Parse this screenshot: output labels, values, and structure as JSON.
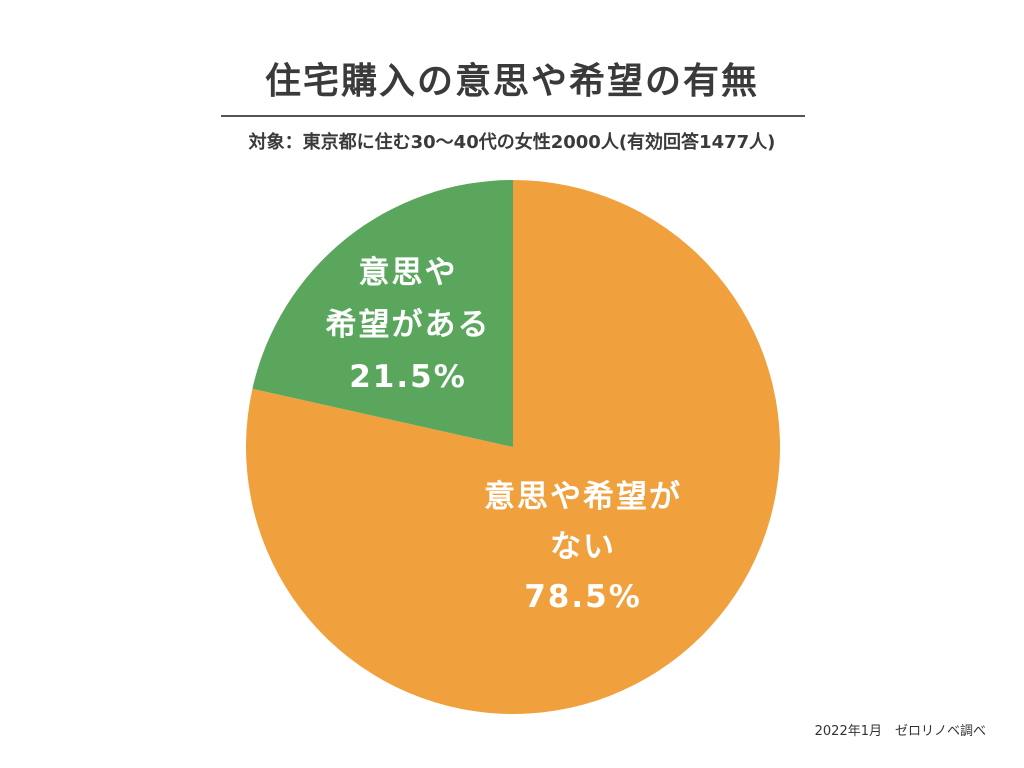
{
  "chart_data": {
    "type": "pie",
    "title": "住宅購入の意思や希望の有無",
    "subtitle": "対象：東京都に住む30〜40代の女性2000人(有効回答1477人)",
    "slices": [
      {
        "label_lines": [
          "意思や希望が",
          "ない"
        ],
        "value": 78.5,
        "value_label": "78.5%",
        "color": "#f0a03c"
      },
      {
        "label_lines": [
          "意思や",
          "希望がある"
        ],
        "value": 21.5,
        "value_label": "21.5%",
        "color": "#59a65c"
      }
    ],
    "start": "top",
    "direction": "clockwise"
  },
  "source_note": "2022年1月　ゼロリノベ調べ"
}
